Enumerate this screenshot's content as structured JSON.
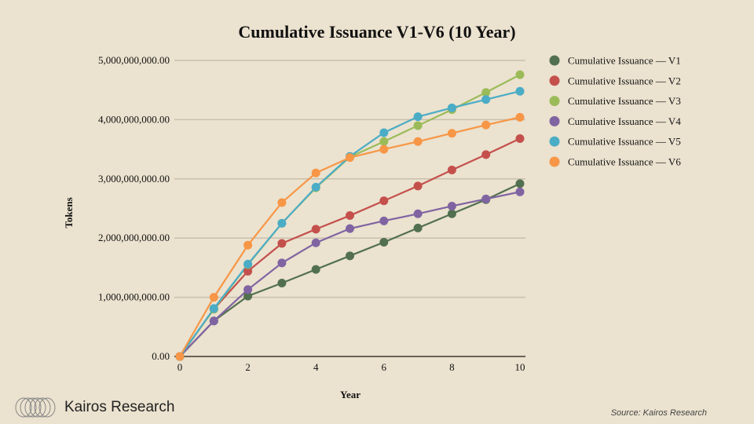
{
  "chart_data": {
    "type": "line",
    "title": "Cumulative Issuance  V1-V6 (10 Year)",
    "xlabel": "Year",
    "ylabel": "Tokens",
    "x": [
      0,
      1,
      2,
      3,
      4,
      5,
      6,
      7,
      8,
      9,
      10
    ],
    "xticks": [
      "0",
      "2",
      "4",
      "6",
      "8",
      "10"
    ],
    "yticks": [
      "0.00",
      "1,000,000,000.00",
      "2,000,000,000.00",
      "3,000,000,000.00",
      "4,000,000,000.00",
      "5,000,000,000.00"
    ],
    "ylim": [
      0,
      5000000000
    ],
    "xlim": [
      0,
      10
    ],
    "grid": true,
    "legend_position": "right",
    "series": [
      {
        "name": "Cumulative Issuance — V1",
        "color": "#52704f",
        "values": [
          0,
          600000000,
          1020000000,
          1240000000,
          1470000000,
          1700000000,
          1930000000,
          2170000000,
          2410000000,
          2650000000,
          2920000000
        ]
      },
      {
        "name": "Cumulative Issuance — V2",
        "color": "#c4504c",
        "values": [
          0,
          800000000,
          1440000000,
          1910000000,
          2150000000,
          2380000000,
          2630000000,
          2880000000,
          3150000000,
          3410000000,
          3680000000
        ]
      },
      {
        "name": "Cumulative Issuance — V3",
        "color": "#9bbb59",
        "values": [
          0,
          800000000,
          1550000000,
          2250000000,
          2850000000,
          3370000000,
          3630000000,
          3900000000,
          4170000000,
          4460000000,
          4760000000
        ]
      },
      {
        "name": "Cumulative Issuance — V4",
        "color": "#8064a2",
        "values": [
          0,
          600000000,
          1130000000,
          1580000000,
          1920000000,
          2160000000,
          2290000000,
          2410000000,
          2540000000,
          2660000000,
          2780000000
        ]
      },
      {
        "name": "Cumulative Issuance — V5",
        "color": "#4bacc6",
        "values": [
          0,
          810000000,
          1560000000,
          2250000000,
          2860000000,
          3380000000,
          3780000000,
          4050000000,
          4200000000,
          4340000000,
          4480000000
        ]
      },
      {
        "name": "Cumulative Issuance — V6",
        "color": "#f79646",
        "values": [
          0,
          1000000000,
          1880000000,
          2600000000,
          3100000000,
          3360000000,
          3500000000,
          3630000000,
          3770000000,
          3910000000,
          4040000000
        ]
      }
    ]
  },
  "footer": {
    "brand": "Kairos Research",
    "source": "Source: Kairos Research"
  }
}
